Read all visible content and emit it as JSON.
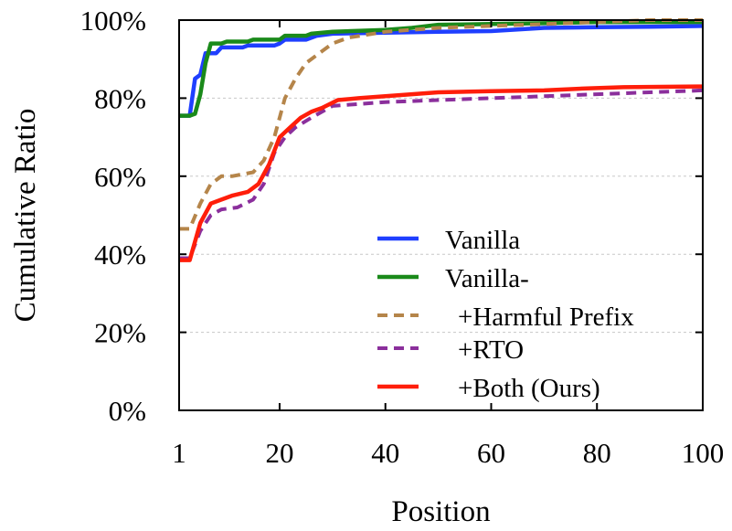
{
  "chart_data": {
    "type": "line",
    "title": "",
    "xlabel": "Position",
    "ylabel": "Cumulative Ratio",
    "xlim": [
      1,
      100
    ],
    "ylim": [
      0,
      100
    ],
    "xticks": [
      1,
      20,
      40,
      60,
      80,
      100
    ],
    "xtick_labels": [
      "1",
      "20",
      "40",
      "60",
      "80",
      "100"
    ],
    "yticks": [
      0,
      20,
      40,
      60,
      80,
      100
    ],
    "ytick_labels": [
      "0%",
      "20%",
      "40%",
      "60%",
      "80%",
      "100%"
    ],
    "grid": "horizontal dashed",
    "legend_position": "bottom-right",
    "legend_labels": [
      "Vanilla",
      "Vanilla-",
      "+Harmful Prefix",
      "+RTO",
      "+Both (Ours)"
    ],
    "series": [
      {
        "name": "Vanilla",
        "color": "#1f3fff",
        "dash": "solid",
        "points": [
          [
            1,
            75.5
          ],
          [
            3,
            75.5
          ],
          [
            4,
            85
          ],
          [
            5,
            86
          ],
          [
            6,
            91.5
          ],
          [
            8,
            91.5
          ],
          [
            9,
            93
          ],
          [
            13,
            93
          ],
          [
            14,
            93.5
          ],
          [
            19,
            93.5
          ],
          [
            20,
            94
          ],
          [
            21,
            95
          ],
          [
            25,
            95
          ],
          [
            27,
            96
          ],
          [
            30,
            96.5
          ],
          [
            40,
            96.8
          ],
          [
            50,
            97
          ],
          [
            60,
            97.2
          ],
          [
            70,
            98
          ],
          [
            80,
            98.2
          ],
          [
            90,
            98.3
          ],
          [
            100,
            98.5
          ]
        ]
      },
      {
        "name": "Vanilla-",
        "color": "#1a8a1a",
        "dash": "solid",
        "points": [
          [
            1,
            75.5
          ],
          [
            3,
            75.5
          ],
          [
            4,
            76
          ],
          [
            5,
            81
          ],
          [
            6,
            89
          ],
          [
            7,
            94
          ],
          [
            9,
            94
          ],
          [
            10,
            94.5
          ],
          [
            14,
            94.5
          ],
          [
            15,
            95
          ],
          [
            20,
            95
          ],
          [
            21,
            96
          ],
          [
            25,
            96
          ],
          [
            26,
            96.5
          ],
          [
            30,
            97
          ],
          [
            40,
            97.5
          ],
          [
            45,
            98
          ],
          [
            50,
            98.8
          ],
          [
            60,
            99
          ],
          [
            70,
            99.2
          ],
          [
            80,
            99.5
          ],
          [
            90,
            99.5
          ],
          [
            100,
            99.5
          ]
        ]
      },
      {
        "name": "+Harmful Prefix",
        "color": "#b5854a",
        "dash": "dashed",
        "points": [
          [
            1,
            46.5
          ],
          [
            3,
            46.5
          ],
          [
            5,
            53
          ],
          [
            7,
            58
          ],
          [
            9,
            60
          ],
          [
            11,
            60
          ],
          [
            15,
            61
          ],
          [
            17,
            64
          ],
          [
            19,
            70
          ],
          [
            21,
            80
          ],
          [
            23,
            85
          ],
          [
            25,
            89
          ],
          [
            27,
            91
          ],
          [
            30,
            94
          ],
          [
            33,
            95.5
          ],
          [
            40,
            97
          ],
          [
            50,
            98
          ],
          [
            60,
            98.5
          ],
          [
            70,
            99
          ],
          [
            80,
            99.5
          ],
          [
            90,
            100
          ],
          [
            100,
            100
          ]
        ]
      },
      {
        "name": "+RTO",
        "color": "#8b2f9c",
        "dash": "dashed",
        "points": [
          [
            1,
            39
          ],
          [
            3,
            39
          ],
          [
            5,
            46
          ],
          [
            7,
            50
          ],
          [
            9,
            51.5
          ],
          [
            12,
            52
          ],
          [
            15,
            54
          ],
          [
            17,
            58
          ],
          [
            19,
            66
          ],
          [
            21,
            70
          ],
          [
            23,
            72.5
          ],
          [
            26,
            75
          ],
          [
            30,
            78
          ],
          [
            35,
            78.5
          ],
          [
            40,
            79
          ],
          [
            50,
            79.5
          ],
          [
            60,
            80
          ],
          [
            70,
            80.5
          ],
          [
            80,
            81
          ],
          [
            90,
            81.5
          ],
          [
            100,
            82
          ]
        ]
      },
      {
        "name": "+Both (Ours)",
        "color": "#ff1e0a",
        "dash": "solid",
        "points": [
          [
            1,
            38.5
          ],
          [
            3,
            38.5
          ],
          [
            5,
            48
          ],
          [
            7,
            53
          ],
          [
            9,
            54
          ],
          [
            11,
            55
          ],
          [
            14,
            56
          ],
          [
            16,
            58
          ],
          [
            18,
            63
          ],
          [
            20,
            70
          ],
          [
            22,
            72.5
          ],
          [
            24,
            75
          ],
          [
            26,
            76.5
          ],
          [
            28,
            77.5
          ],
          [
            31,
            79.5
          ],
          [
            35,
            80
          ],
          [
            40,
            80.5
          ],
          [
            45,
            81
          ],
          [
            50,
            81.5
          ],
          [
            60,
            81.8
          ],
          [
            70,
            82
          ],
          [
            78,
            82.5
          ],
          [
            85,
            82.8
          ],
          [
            100,
            83
          ]
        ]
      }
    ]
  }
}
